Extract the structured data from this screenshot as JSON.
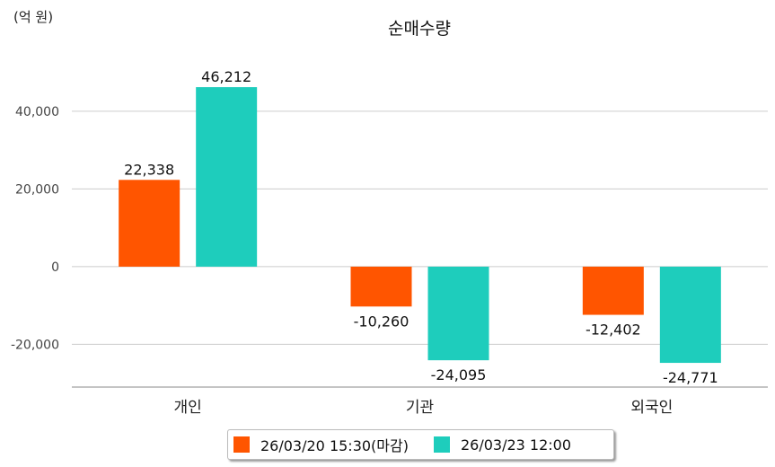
{
  "chart_data": {
    "type": "bar",
    "title": "순매수량",
    "unit_label": "(억 원)",
    "categories": [
      "개인",
      "기관",
      "외국인"
    ],
    "series": [
      {
        "name": "26/03/20 15:30(마감)",
        "color": "#ff5500",
        "values": [
          22338,
          -10260,
          -12402
        ],
        "labels": [
          "22,338",
          "-10,260",
          "-12,402"
        ]
      },
      {
        "name": "26/03/23 12:00",
        "color": "#1ecdbc",
        "values": [
          46212,
          -24095,
          -24771
        ],
        "labels": [
          "46,212",
          "-24,095",
          "-24,771"
        ]
      }
    ],
    "yticks": [
      40000,
      20000,
      0,
      -20000
    ],
    "ytick_labels": [
      "40,000",
      "20,000",
      "0",
      "-20,000"
    ],
    "ylim": [
      -31000,
      59400
    ],
    "grid": true,
    "legend": "bottom"
  }
}
